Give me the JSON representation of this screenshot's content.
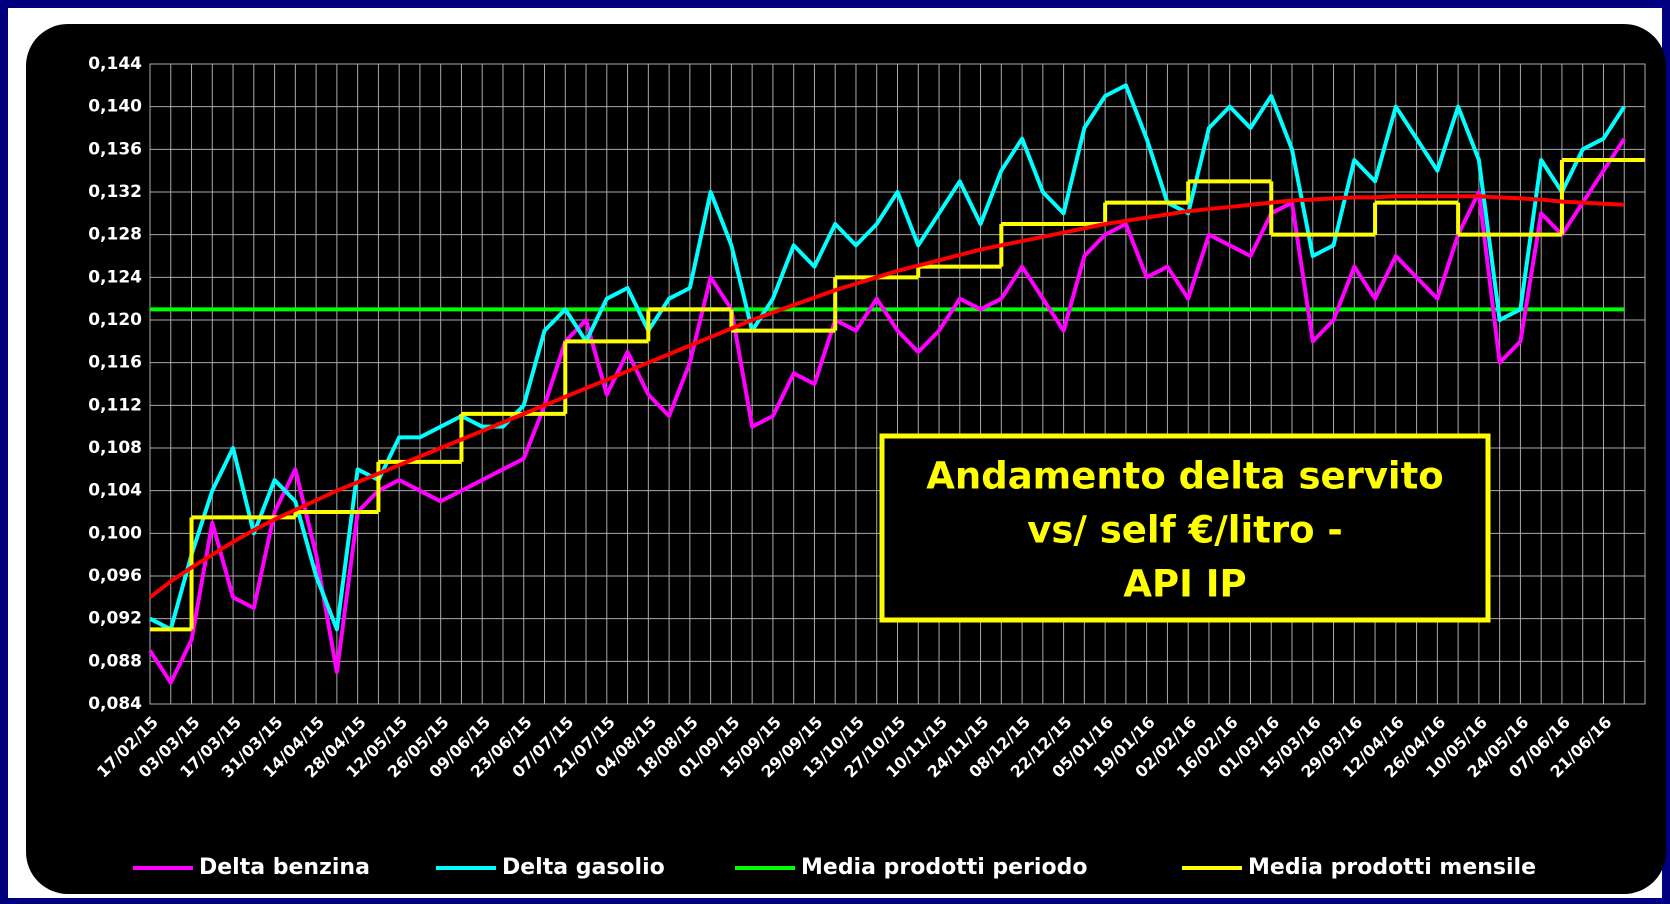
{
  "chart_data": {
    "type": "line",
    "annotation": [
      "Andamento delta servito",
      "vs/ self €/litro -",
      "API IP"
    ],
    "categories": [
      "17/02/15",
      null,
      "03/03/15",
      null,
      "17/03/15",
      null,
      "31/03/15",
      null,
      "14/04/15",
      null,
      "28/04/15",
      null,
      "12/05/15",
      null,
      "26/05/15",
      null,
      "09/06/15",
      null,
      "23/06/15",
      null,
      "07/07/15",
      null,
      "21/07/15",
      null,
      "04/08/15",
      null,
      "18/08/15",
      null,
      "01/09/15",
      null,
      "15/09/15",
      null,
      "29/09/15",
      null,
      "13/10/15",
      null,
      "27/10/15",
      null,
      "10/11/15",
      null,
      "24/11/15",
      null,
      "08/12/15",
      null,
      "22/12/15",
      null,
      "05/01/16",
      null,
      "19/01/16",
      null,
      "02/02/16",
      null,
      "16/02/16",
      null,
      "01/03/16",
      null,
      "15/03/16",
      null,
      "29/03/16",
      null,
      "12/04/16",
      null,
      "26/04/16",
      null,
      "10/05/16",
      null,
      "24/05/16",
      null,
      "07/06/16",
      null,
      "21/06/16",
      null
    ],
    "series": [
      {
        "name": "Media prodotti periodo",
        "color": "#00ff00",
        "values": [
          0.121,
          0.121,
          0.121,
          0.121,
          0.121,
          0.121,
          0.121,
          0.121,
          0.121,
          0.121,
          0.121,
          0.121,
          0.121,
          0.121,
          0.121,
          0.121,
          0.121,
          0.121,
          0.121,
          0.121,
          0.121,
          0.121,
          0.121,
          0.121,
          0.121,
          0.121,
          0.121,
          0.121,
          0.121,
          0.121,
          0.121,
          0.121,
          0.121,
          0.121,
          0.121,
          0.121,
          0.121,
          0.121,
          0.121,
          0.121,
          0.121,
          0.121,
          0.121,
          0.121,
          0.121,
          0.121,
          0.121,
          0.121,
          0.121,
          0.121,
          0.121,
          0.121,
          0.121,
          0.121,
          0.121,
          0.121,
          0.121,
          0.121,
          0.121,
          0.121,
          0.121,
          0.121,
          0.121,
          0.121,
          0.121,
          0.121,
          0.121,
          0.121,
          0.121,
          0.121,
          0.121,
          0.121
        ]
      },
      {
        "name": "Delta benzina",
        "color": "#ff00ff",
        "values": [
          0.089,
          0.086,
          0.09,
          0.101,
          0.094,
          0.093,
          0.102,
          0.106,
          0.098,
          0.087,
          0.102,
          0.104,
          0.105,
          0.104,
          0.103,
          0.104,
          0.105,
          0.106,
          0.107,
          0.112,
          0.118,
          0.12,
          0.113,
          0.117,
          0.113,
          0.111,
          0.116,
          0.124,
          0.121,
          0.11,
          0.111,
          0.115,
          0.114,
          0.12,
          0.119,
          0.122,
          0.119,
          0.117,
          0.119,
          0.122,
          0.121,
          0.122,
          0.125,
          0.122,
          0.119,
          0.126,
          0.128,
          0.129,
          0.124,
          0.125,
          0.122,
          0.128,
          0.127,
          0.126,
          0.13,
          0.131,
          0.118,
          0.12,
          0.125,
          0.122,
          0.126,
          0.124,
          0.122,
          0.128,
          0.132,
          0.116,
          0.118,
          0.13,
          0.128,
          0.131,
          0.134,
          0.137
        ]
      },
      {
        "name": "Delta gasolio",
        "color": "#00ffff",
        "values": [
          0.092,
          0.091,
          0.098,
          0.104,
          0.108,
          0.1,
          0.105,
          0.103,
          0.096,
          0.091,
          0.106,
          0.105,
          0.109,
          0.109,
          0.11,
          0.111,
          0.11,
          0.11,
          0.112,
          0.119,
          0.121,
          0.118,
          0.122,
          0.123,
          0.119,
          0.122,
          0.123,
          0.132,
          0.127,
          0.119,
          0.122,
          0.127,
          0.125,
          0.129,
          0.127,
          0.129,
          0.132,
          0.127,
          0.13,
          0.133,
          0.129,
          0.134,
          0.137,
          0.132,
          0.13,
          0.138,
          0.141,
          0.142,
          0.137,
          0.131,
          0.13,
          0.138,
          0.14,
          0.138,
          0.141,
          0.136,
          0.126,
          0.127,
          0.135,
          0.133,
          0.14,
          0.137,
          0.134,
          0.14,
          0.135,
          0.12,
          0.121,
          0.135,
          0.132,
          0.136,
          0.137,
          0.14
        ]
      },
      {
        "name": "Media prodotti mensile",
        "color": "#ffff00",
        "steps": true,
        "values": [
          0.091,
          0.091,
          0.1015,
          0.1015,
          0.1015,
          0.1015,
          0.1015,
          0.102,
          0.102,
          0.102,
          0.102,
          0.1067,
          0.1067,
          0.1067,
          0.1067,
          0.1112,
          0.1112,
          0.1112,
          0.1112,
          0.1112,
          0.118,
          0.118,
          0.118,
          0.118,
          0.121,
          0.121,
          0.121,
          0.121,
          0.119,
          0.119,
          0.119,
          0.119,
          0.119,
          0.124,
          0.124,
          0.124,
          0.124,
          0.125,
          0.125,
          0.125,
          0.125,
          0.129,
          0.129,
          0.129,
          0.129,
          0.129,
          0.131,
          0.131,
          0.131,
          0.131,
          0.133,
          0.133,
          0.133,
          0.133,
          0.128,
          0.128,
          0.128,
          0.128,
          0.128,
          0.131,
          0.131,
          0.131,
          0.131,
          0.128,
          0.128,
          0.128,
          0.128,
          0.128,
          0.135,
          0.135,
          0.135,
          0.135
        ]
      },
      {
        "color": "#ff0000",
        "values": [
          0.094,
          0.0955,
          0.0968,
          0.098,
          0.0992,
          0.1003,
          0.1013,
          0.1022,
          0.1031,
          0.104,
          0.1048,
          0.1056,
          0.1064,
          0.1072,
          0.108,
          0.1088,
          0.1096,
          0.1104,
          0.1112,
          0.112,
          0.1128,
          0.1136,
          0.1144,
          0.1152,
          0.116,
          0.1168,
          0.1176,
          0.1184,
          0.1192,
          0.12,
          0.1207,
          0.1214,
          0.1221,
          0.1228,
          0.1234,
          0.124,
          0.1246,
          0.1251,
          0.1256,
          0.1261,
          0.1266,
          0.127,
          0.1274,
          0.1278,
          0.1282,
          0.1286,
          0.129,
          0.1293,
          0.1296,
          0.1299,
          0.1302,
          0.1304,
          0.1306,
          0.1308,
          0.131,
          0.1312,
          0.1313,
          0.1314,
          0.1315,
          0.1315,
          0.1316,
          0.1316,
          0.1316,
          0.1316,
          0.1316,
          0.1315,
          0.1314,
          0.1313,
          0.1311,
          0.131,
          0.1309,
          0.1308
        ]
      }
    ],
    "ylim": [
      0.084,
      0.144
    ],
    "yticks": [
      {
        "value": 0.084,
        "label": "0,084"
      },
      {
        "value": 0.088,
        "label": "0,088"
      },
      {
        "value": 0.092,
        "label": "0,092"
      },
      {
        "value": 0.096,
        "label": "0,096"
      },
      {
        "value": 0.1,
        "label": "0,100"
      },
      {
        "value": 0.104,
        "label": "0,104"
      },
      {
        "value": 0.108,
        "label": "0,108"
      },
      {
        "value": 0.112,
        "label": "0,112"
      },
      {
        "value": 0.116,
        "label": "0,116"
      },
      {
        "value": 0.12,
        "label": "0,120"
      },
      {
        "value": 0.124,
        "label": "0,124"
      },
      {
        "value": 0.128,
        "label": "0,128"
      },
      {
        "value": 0.132,
        "label": "0,132"
      },
      {
        "value": 0.136,
        "label": "0,136"
      },
      {
        "value": 0.14,
        "label": "0,140"
      },
      {
        "value": 0.144,
        "label": "0,144"
      }
    ],
    "grid": true,
    "legend": "bottom"
  }
}
